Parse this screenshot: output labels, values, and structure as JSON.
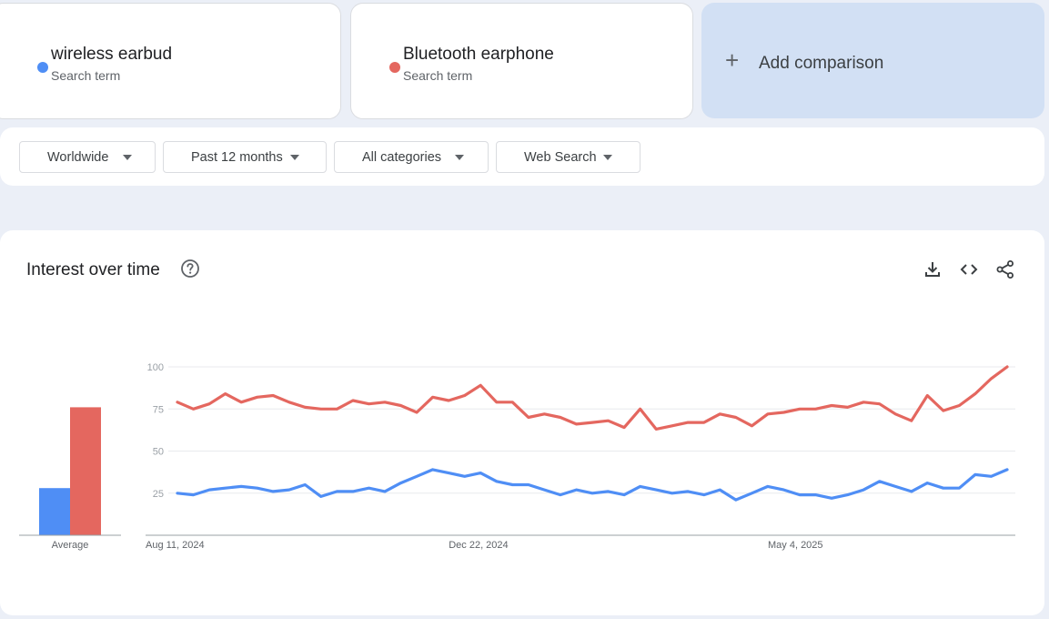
{
  "terms": [
    {
      "name": "wireless earbud",
      "subtitle": "Search term",
      "color": "#4f8ef5"
    },
    {
      "name": "Bluetooth earphone",
      "subtitle": "Search term",
      "color": "#e4675f"
    }
  ],
  "add_comparison": {
    "label": "Add comparison",
    "icon": "plus-icon"
  },
  "filters": [
    {
      "label": "Worldwide"
    },
    {
      "label": "Past 12 months"
    },
    {
      "label": "All categories"
    },
    {
      "label": "Web Search"
    }
  ],
  "card": {
    "title": "Interest over time",
    "icons": [
      "help-icon",
      "download-icon",
      "embed-icon",
      "share-icon"
    ]
  },
  "chart_data": {
    "type": "line",
    "y_ticks": [
      "100",
      "75",
      "50",
      "25"
    ],
    "ylim": [
      0,
      100
    ],
    "x_tick_labels": [
      {
        "label": "Aug 11, 2024",
        "index": 0
      },
      {
        "label": "Dec 22, 2024",
        "index": 19
      },
      {
        "label": "May 4, 2025",
        "index": 39
      }
    ],
    "average_label": "Average",
    "averages": [
      28,
      76
    ],
    "series": [
      {
        "name": "wireless earbud",
        "color": "#4f8ef5",
        "values": [
          25,
          24,
          27,
          28,
          29,
          28,
          26,
          27,
          30,
          23,
          26,
          26,
          28,
          26,
          31,
          35,
          39,
          37,
          35,
          37,
          32,
          30,
          30,
          27,
          24,
          27,
          25,
          26,
          24,
          29,
          27,
          25,
          26,
          24,
          27,
          21,
          25,
          29,
          27,
          24,
          24,
          22,
          24,
          27,
          32,
          29,
          26,
          31,
          28,
          28,
          36,
          35,
          39
        ]
      },
      {
        "name": "Bluetooth earphone",
        "color": "#e4675f",
        "values": [
          79,
          75,
          78,
          84,
          79,
          82,
          83,
          79,
          76,
          75,
          75,
          80,
          78,
          79,
          77,
          73,
          82,
          80,
          83,
          89,
          79,
          79,
          70,
          72,
          70,
          66,
          67,
          68,
          64,
          75,
          63,
          65,
          67,
          67,
          72,
          70,
          65,
          72,
          73,
          75,
          75,
          77,
          76,
          79,
          78,
          72,
          68,
          83,
          74,
          77,
          84,
          93,
          100
        ]
      }
    ]
  }
}
